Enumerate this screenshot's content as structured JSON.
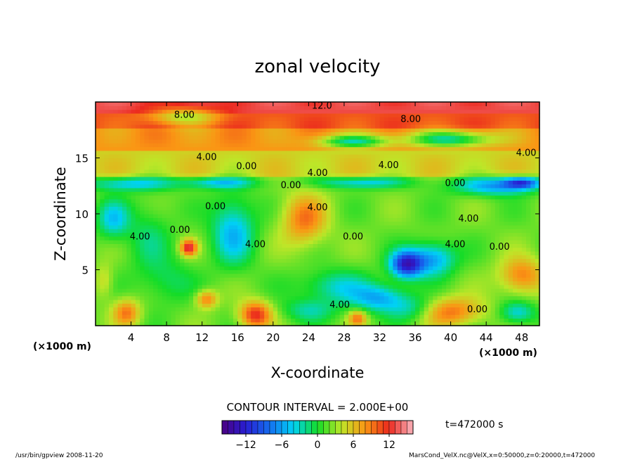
{
  "chart_data": {
    "type": "heatmap",
    "title": "zonal velocity",
    "xlabel": "X-coordinate",
    "ylabel": "Z-coordinate",
    "x_unit_left": "(×1000 m)",
    "x_unit_right": "(×1000 m)",
    "xlim": [
      0,
      50
    ],
    "ylim": [
      0,
      20
    ],
    "xticks": [
      4,
      8,
      12,
      16,
      20,
      24,
      28,
      32,
      36,
      40,
      44,
      48
    ],
    "yticks": [
      5,
      10,
      15
    ],
    "contour_interval_text": "CONTOUR INTERVAL = 2.000E+00",
    "contour_labels": [
      {
        "text": "12.0",
        "x": 25.5,
        "y": 19.4
      },
      {
        "text": "8.00",
        "x": 10.0,
        "y": 18.6
      },
      {
        "text": "8.00",
        "x": 35.5,
        "y": 18.2
      },
      {
        "text": "4.00",
        "x": 12.5,
        "y": 14.8
      },
      {
        "text": "0.00",
        "x": 17.0,
        "y": 14.0
      },
      {
        "text": "4.00",
        "x": 25.0,
        "y": 13.4
      },
      {
        "text": "4.00",
        "x": 33.0,
        "y": 14.1
      },
      {
        "text": "4.00",
        "x": 48.5,
        "y": 15.2
      },
      {
        "text": "0.00",
        "x": 22.0,
        "y": 12.3
      },
      {
        "text": "0.00",
        "x": 40.5,
        "y": 12.5
      },
      {
        "text": "0.00",
        "x": 13.5,
        "y": 10.4
      },
      {
        "text": "4.00",
        "x": 25.0,
        "y": 10.3
      },
      {
        "text": "0.00",
        "x": 9.5,
        "y": 8.3
      },
      {
        "text": "4.00",
        "x": 5.0,
        "y": 7.7
      },
      {
        "text": "4.00",
        "x": 18.0,
        "y": 7.0
      },
      {
        "text": "0.00",
        "x": 29.0,
        "y": 7.7
      },
      {
        "text": "4.00",
        "x": 42.0,
        "y": 9.3
      },
      {
        "text": "4.00",
        "x": 40.5,
        "y": 7.0
      },
      {
        "text": "0.00",
        "x": 45.5,
        "y": 6.8
      },
      {
        "text": "4.00",
        "x": 27.5,
        "y": 1.6
      },
      {
        "text": "0.00",
        "x": 43.0,
        "y": 1.2
      }
    ],
    "colorbar": {
      "range": [
        -16,
        16
      ],
      "ticks": [
        -12,
        -6,
        0,
        6,
        12
      ],
      "tick_labels": [
        "−12",
        "−6",
        "0",
        "6",
        "12"
      ]
    },
    "time_label": "t=472000 s",
    "field": {
      "base": [
        {
          "zmin": 0,
          "zmax": 13.3,
          "value": 2
        },
        {
          "zmin": 13.3,
          "zmax": 15.5,
          "value": 5
        },
        {
          "zmin": 15.5,
          "zmax": 17.8,
          "value": 8
        },
        {
          "zmin": 17.8,
          "zmax": 19.0,
          "value": 10.5
        },
        {
          "zmin": 19.0,
          "zmax": 20,
          "value": 13
        }
      ],
      "features": [
        {
          "x": 4,
          "z": 12.7,
          "rx": 5,
          "rz": 0.6,
          "value": -4
        },
        {
          "x": 14,
          "z": 12.8,
          "rx": 4,
          "rz": 0.5,
          "value": -4
        },
        {
          "x": 30,
          "z": 12.8,
          "rx": 5,
          "rz": 0.5,
          "value": -4
        },
        {
          "x": 45,
          "z": 12.5,
          "rx": 4.5,
          "rz": 0.8,
          "value": -6
        },
        {
          "x": 48,
          "z": 12.8,
          "rx": 2,
          "rz": 0.5,
          "value": -8
        },
        {
          "x": 2,
          "z": 9.5,
          "rx": 1.8,
          "rz": 1.7,
          "value": -4
        },
        {
          "x": 6,
          "z": 8,
          "rx": 2.5,
          "rz": 3,
          "value": -1
        },
        {
          "x": 15.5,
          "z": 8.5,
          "rx": 2.4,
          "rz": 3,
          "value": -5
        },
        {
          "x": 35,
          "z": 5.5,
          "rx": 1.8,
          "rz": 1.2,
          "value": -12
        },
        {
          "x": 38,
          "z": 6,
          "rx": 2.5,
          "rz": 1.5,
          "value": -6
        },
        {
          "x": 27,
          "z": 3.5,
          "rx": 4,
          "rz": 1.5,
          "value": -3
        },
        {
          "x": 32,
          "z": 2.5,
          "rx": 3,
          "rz": 1.2,
          "value": -5
        },
        {
          "x": 36,
          "z": 1.5,
          "rx": 3,
          "rz": 1.2,
          "value": -4
        },
        {
          "x": 24,
          "z": 1.4,
          "rx": 3,
          "rz": 1,
          "value": -2
        },
        {
          "x": 47.5,
          "z": 1.2,
          "rx": 2,
          "rz": 1,
          "value": -4
        },
        {
          "x": 8,
          "z": 4,
          "rx": 3,
          "rz": 2,
          "value": -1
        },
        {
          "x": 23.5,
          "z": 9.5,
          "rx": 2.5,
          "rz": 2.3,
          "value": 9
        },
        {
          "x": 10.5,
          "z": 7,
          "rx": 0.9,
          "rz": 0.7,
          "value": 13
        },
        {
          "x": 12.5,
          "z": 2.4,
          "rx": 1.2,
          "rz": 0.8,
          "value": 9
        },
        {
          "x": 18,
          "z": 1,
          "rx": 1.8,
          "rz": 1.2,
          "value": 12
        },
        {
          "x": 3.5,
          "z": 1.2,
          "rx": 1.5,
          "rz": 1.2,
          "value": 9
        },
        {
          "x": 39.5,
          "z": 1.3,
          "rx": 4,
          "rz": 1.3,
          "value": 10
        },
        {
          "x": 48,
          "z": 4.5,
          "rx": 2.5,
          "rz": 1.6,
          "value": 9
        },
        {
          "x": 1,
          "z": 4,
          "rx": 1,
          "rz": 1.5,
          "value": 5
        },
        {
          "x": 29.5,
          "z": 0.7,
          "rx": 1,
          "rz": 0.7,
          "value": 9
        },
        {
          "x": 10,
          "z": 18.7,
          "rx": 4,
          "rz": 0.8,
          "value": 4
        },
        {
          "x": 29,
          "z": 16.5,
          "rx": 4,
          "rz": 0.6,
          "value": -2
        },
        {
          "x": 40,
          "z": 16.7,
          "rx": 5,
          "rz": 0.7,
          "value": -2
        }
      ]
    }
  },
  "footer": {
    "left": "/usr/bin/gpview  2008-11-20",
    "right": "MarsCond_VelX.nc@VelX,x=0:50000,z=0:20000,t=472000"
  }
}
